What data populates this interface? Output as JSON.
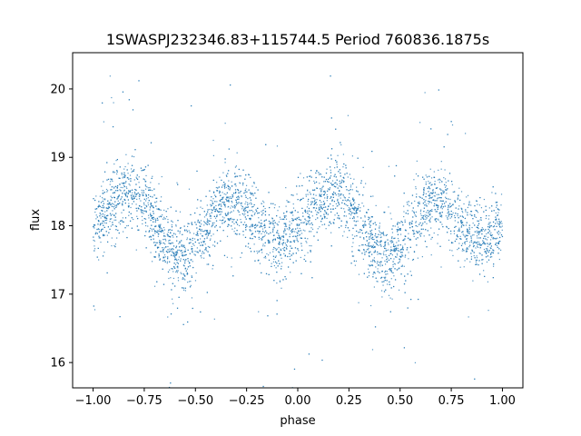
{
  "chart_data": {
    "type": "scatter",
    "title": "1SWASPJ232346.83+115744.5 Period 760836.1875s",
    "xlabel": "phase",
    "ylabel": "flux",
    "xlim": [
      -1.1,
      1.1
    ],
    "ylim": [
      15.63,
      20.53
    ],
    "xticks": [
      -1.0,
      -0.75,
      -0.5,
      -0.25,
      0.0,
      0.25,
      0.5,
      0.75,
      1.0
    ],
    "xtick_labels": [
      "−1.00",
      "−0.75",
      "−0.50",
      "−0.25",
      "0.00",
      "0.25",
      "0.50",
      "0.75",
      "1.00"
    ],
    "yticks": [
      16,
      17,
      18,
      19,
      20
    ],
    "ytick_labels": [
      "16",
      "17",
      "18",
      "19",
      "20"
    ],
    "grid": false,
    "marker_color": "#1f77b4",
    "series": [
      {
        "phase": [
          -1.0,
          -0.95,
          -0.9,
          -0.85,
          -0.8,
          -0.75,
          -0.7,
          -0.65,
          -0.6,
          -0.55,
          -0.5,
          -0.45,
          -0.4,
          -0.35,
          -0.3,
          -0.25,
          -0.2,
          -0.15,
          -0.1,
          -0.05,
          0.0,
          0.05,
          0.1,
          0.15,
          0.2,
          0.25,
          0.3,
          0.35,
          0.4,
          0.45,
          0.5,
          0.55,
          0.6,
          0.65,
          0.7,
          0.75,
          0.8,
          0.85,
          0.9,
          0.95,
          1.0
        ],
        "flux_center": [
          17.95,
          18.15,
          18.3,
          18.45,
          18.5,
          18.4,
          18.05,
          17.8,
          17.55,
          17.5,
          17.7,
          17.95,
          18.2,
          18.35,
          18.4,
          18.2,
          18.0,
          17.85,
          17.8,
          17.85,
          17.95,
          18.15,
          18.3,
          18.45,
          18.5,
          18.4,
          18.05,
          17.8,
          17.55,
          17.5,
          17.7,
          17.95,
          18.2,
          18.35,
          18.4,
          18.2,
          18.0,
          17.85,
          17.8,
          17.85,
          17.95
        ]
      }
    ]
  }
}
